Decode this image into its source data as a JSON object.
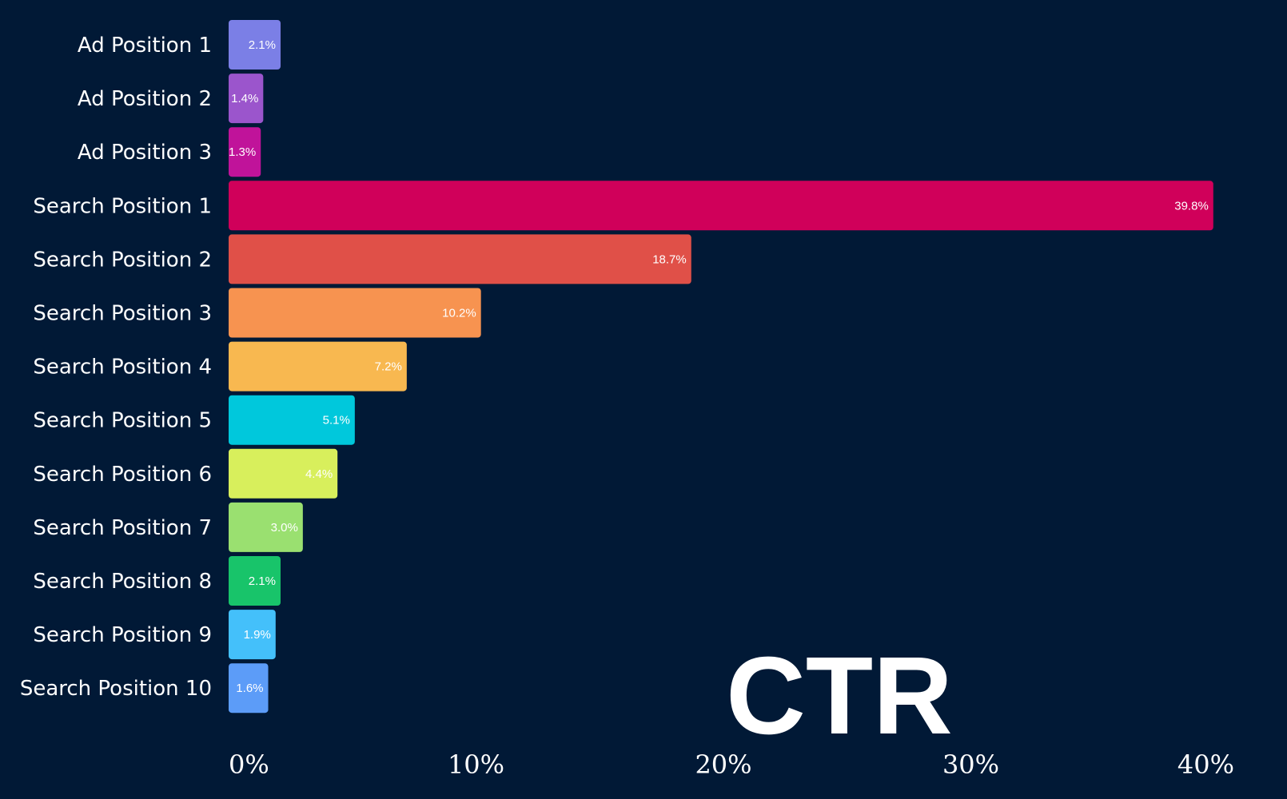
{
  "chart_data": {
    "type": "bar",
    "orientation": "horizontal",
    "title": "CTR",
    "categories": [
      "Ad Position 1",
      "Ad Position 2",
      "Ad Position 3",
      "Search Position 1",
      "Search Position 2",
      "Search Position 3",
      "Search Position 4",
      "Search Position 5",
      "Search Position 6",
      "Search Position 7",
      "Search Position 8",
      "Search Position 9",
      "Search Position 10"
    ],
    "values": [
      2.1,
      1.4,
      1.3,
      39.8,
      18.7,
      10.2,
      7.2,
      5.1,
      4.4,
      3.0,
      2.1,
      1.9,
      1.6
    ],
    "data_labels": [
      "2.1%",
      "1.4%",
      "1.3%",
      "39.8%",
      "18.7%",
      "10.2%",
      "7.2%",
      "5.1%",
      "4.4%",
      "3.0%",
      "2.1%",
      "1.9%",
      "1.6%"
    ],
    "colors": [
      "#7b7fe6",
      "#9b55cc",
      "#c0139a",
      "#d0005a",
      "#e05048",
      "#f79350",
      "#f8b850",
      "#00c8dc",
      "#d8ef5c",
      "#9ae070",
      "#18c46a",
      "#44c0fa",
      "#5c9cf8"
    ],
    "xticks": [
      0,
      10,
      20,
      30,
      40
    ],
    "xtick_labels": [
      "0%",
      "10%",
      "20%",
      "30%",
      "40%"
    ],
    "xlim": [
      0,
      40
    ],
    "xlabel": "",
    "ylabel": "",
    "grid": false,
    "background": "#011936"
  }
}
